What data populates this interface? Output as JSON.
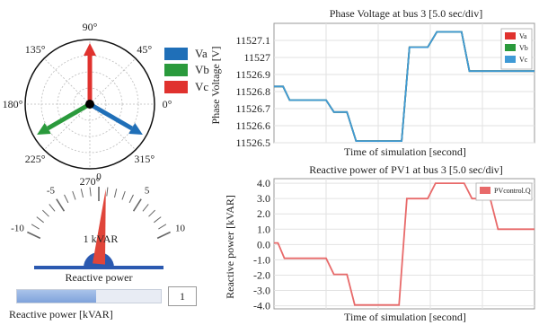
{
  "phasor": {
    "angle_labels": [
      "90°",
      "45°",
      "0°",
      "315°",
      "270°",
      "225°",
      "180°",
      "135°"
    ],
    "legend": [
      {
        "label": "Va",
        "color": "#1f6fb8"
      },
      {
        "label": "Vb",
        "color": "#2a9a3c"
      },
      {
        "label": "Vc",
        "color": "#e0322e"
      }
    ],
    "vectors": [
      {
        "name": "Va",
        "angle_deg": -30,
        "color": "#1f6fb8"
      },
      {
        "name": "Vb",
        "angle_deg": 210,
        "color": "#2a9a3c"
      },
      {
        "name": "Vc",
        "angle_deg": 90,
        "color": "#e0322e"
      }
    ]
  },
  "gauge": {
    "ticks": [
      "-10",
      "-5",
      "0",
      "5",
      "10"
    ],
    "unit_label": "1 kVAR",
    "caption": "Reactive power",
    "value": 0.8
  },
  "slider": {
    "label": "Reactive power [kVAR]",
    "value": "1",
    "fraction": 0.55
  },
  "chart_data": [
    {
      "type": "line",
      "title": "Phase Voltage at bus 3 [5.0 sec/div]",
      "xlabel": "Time of simulation [second]",
      "ylabel": "Phase Voltage [V]",
      "ylim": [
        11526.5,
        11527.2
      ],
      "yticks": [
        "11527.1",
        "11527",
        "11526.9",
        "11526.8",
        "11526.7",
        "11526.6",
        "11526.5"
      ],
      "ytick_values": [
        11527.1,
        11527.0,
        11526.9,
        11526.8,
        11526.7,
        11526.6,
        11526.5
      ],
      "xlim": [
        0,
        10
      ],
      "series": [
        {
          "name": "Va",
          "color": "#e0322e",
          "x": [
            0,
            0.35,
            0.6,
            2.0,
            2.3,
            2.8,
            3.15,
            4.9,
            5.2,
            5.9,
            6.25,
            7.2,
            7.5,
            10
          ],
          "y": [
            11526.83,
            11526.83,
            11526.75,
            11526.75,
            11526.68,
            11526.68,
            11526.51,
            11526.51,
            11527.06,
            11527.06,
            11527.15,
            11527.15,
            11526.92,
            11526.92
          ]
        },
        {
          "name": "Vb",
          "color": "#2a9a3c",
          "x": [
            0,
            0.35,
            0.6,
            2.0,
            2.3,
            2.8,
            3.15,
            4.9,
            5.2,
            5.9,
            6.25,
            7.2,
            7.5,
            10
          ],
          "y": [
            11526.83,
            11526.83,
            11526.75,
            11526.75,
            11526.68,
            11526.68,
            11526.51,
            11526.51,
            11527.06,
            11527.06,
            11527.15,
            11527.15,
            11526.92,
            11526.92
          ]
        },
        {
          "name": "Vc",
          "color": "#3f9ad6",
          "x": [
            0,
            0.35,
            0.6,
            2.0,
            2.3,
            2.8,
            3.15,
            4.9,
            5.2,
            5.9,
            6.25,
            7.2,
            7.5,
            10
          ],
          "y": [
            11526.83,
            11526.83,
            11526.75,
            11526.75,
            11526.68,
            11526.68,
            11526.51,
            11526.51,
            11527.06,
            11527.06,
            11527.15,
            11527.15,
            11526.92,
            11526.92
          ]
        }
      ],
      "legend_position": "top-right"
    },
    {
      "type": "line",
      "title": "Reactive power of PV1 at bus 3 [5.0 sec/div]",
      "xlabel": "Time of simulation [second]",
      "ylabel": "Reactive power [kVAR]",
      "ylim": [
        -4.2,
        4.3
      ],
      "yticks": [
        "4.0",
        "3.0",
        "2.0",
        "1.0",
        "0.0",
        "-1.0",
        "-2.0",
        "-3.0",
        "-4.0"
      ],
      "ytick_values": [
        4,
        3,
        2,
        1,
        0,
        -1,
        -2,
        -3,
        -4
      ],
      "xlim": [
        0,
        10
      ],
      "series": [
        {
          "name": "PVcontrol.Q",
          "color": "#e86a6a",
          "x": [
            0,
            0.15,
            0.4,
            2.0,
            2.3,
            2.8,
            3.1,
            4.8,
            5.1,
            5.9,
            6.2,
            7.3,
            7.6,
            8.3,
            8.6,
            10
          ],
          "y": [
            0.1,
            0.1,
            -0.9,
            -0.9,
            -1.95,
            -1.95,
            -3.95,
            -3.95,
            3.0,
            3.0,
            4.0,
            4.0,
            3.0,
            3.0,
            1.0,
            1.0
          ]
        }
      ],
      "legend_position": "top-right"
    }
  ]
}
